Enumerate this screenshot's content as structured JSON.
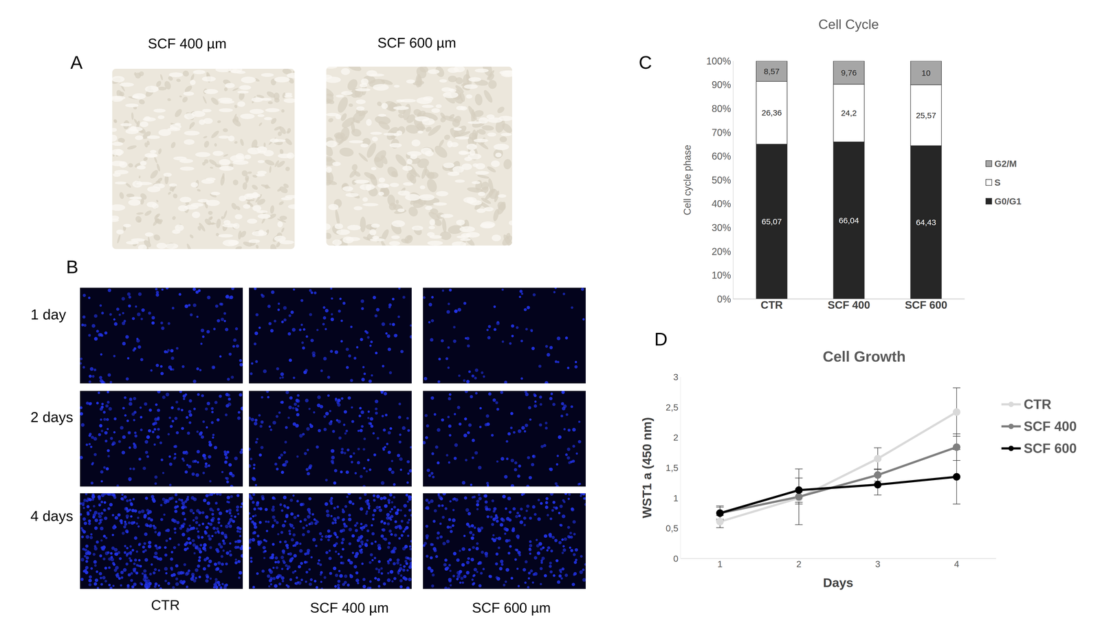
{
  "panels": {
    "A": {
      "panel_label": "A",
      "images": [
        "SCF 400 µm",
        "SCF 600 µm"
      ]
    },
    "B": {
      "panel_label": "B",
      "rows": [
        "1 day",
        "2 days",
        "4 days"
      ],
      "columns": [
        "CTR",
        "SCF 400 µm",
        "SCF 600 µm"
      ]
    }
  },
  "chart_data": [
    {
      "panel_label": "C",
      "type": "bar",
      "title": "Cell Cycle",
      "y_label": "Cell cycle phase",
      "categories": [
        "CTR",
        "SCF 400",
        "SCF 600"
      ],
      "stacked": true,
      "data_labels": true,
      "legend": "right",
      "ylim": [
        0,
        100
      ],
      "yticks": [
        {
          "value": 0,
          "label": "0%"
        },
        {
          "value": 10,
          "label": "10%"
        },
        {
          "value": 20,
          "label": "20%"
        },
        {
          "value": 30,
          "label": "30%"
        },
        {
          "value": 40,
          "label": "40%"
        },
        {
          "value": 50,
          "label": "50%"
        },
        {
          "value": 60,
          "label": "60%"
        },
        {
          "value": 70,
          "label": "70%"
        },
        {
          "value": 80,
          "label": "80%"
        },
        {
          "value": 90,
          "label": "90%"
        },
        {
          "value": 100,
          "label": "100%"
        }
      ],
      "series": [
        {
          "name": "G0/G1",
          "color": "#262626",
          "values": [
            65.07,
            66.04,
            64.43
          ],
          "value_labels": [
            "65,07",
            "66,04",
            "64,43"
          ]
        },
        {
          "name": "S",
          "color": "#ffffff",
          "values": [
            26.36,
            24.2,
            25.57
          ],
          "value_labels": [
            "26,36",
            "24,2",
            "25,57"
          ]
        },
        {
          "name": "G2/M",
          "color": "#a6a6a6",
          "values": [
            8.57,
            9.76,
            10
          ],
          "value_labels": [
            "8,57",
            "9,76",
            "10"
          ]
        }
      ]
    },
    {
      "panel_label": "D",
      "type": "line",
      "title": "Cell Growth",
      "x_label": "Days",
      "y_label": "WST1 a (450 nm)",
      "x": [
        1,
        2,
        3,
        4
      ],
      "xlim": [
        0.5,
        4.5
      ],
      "xticks": [
        1,
        2,
        3,
        4
      ],
      "ylim": [
        0,
        3
      ],
      "yticks": [
        0,
        {
          "value": 0.5,
          "label": "0,5"
        },
        1,
        {
          "value": 1.5,
          "label": "1,5"
        },
        2,
        {
          "value": 2.5,
          "label": "2,5"
        },
        3
      ],
      "legend": "right",
      "marker": "circle",
      "series": [
        {
          "name": "CTR",
          "color": "#d9d9d9",
          "values": [
            0.61,
            1.0,
            1.65,
            2.42
          ],
          "errors": [
            0.1,
            0.1,
            0.18,
            0.4
          ]
        },
        {
          "name": "SCF 400",
          "color": "#7f7f7f",
          "values": [
            0.75,
            1.02,
            1.38,
            1.84
          ],
          "errors": [
            0.1,
            0.46,
            0.1,
            0.22
          ]
        },
        {
          "name": "SCF 600",
          "color": "#000000",
          "values": [
            0.75,
            1.13,
            1.22,
            1.35
          ],
          "errors": [
            0.12,
            0.2,
            0.17,
            0.45
          ]
        }
      ]
    }
  ]
}
